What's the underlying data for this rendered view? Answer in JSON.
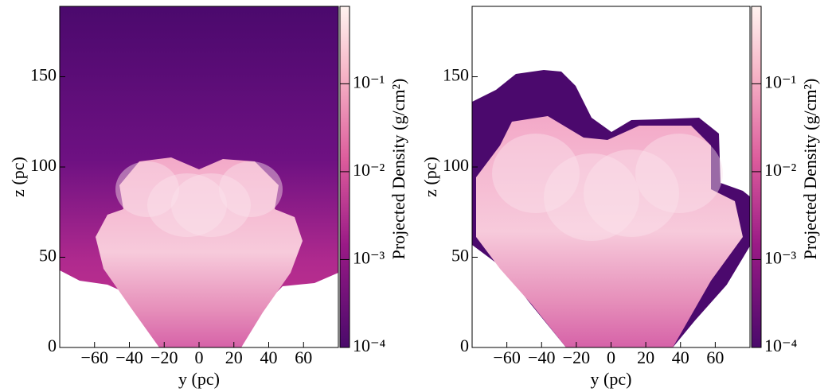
{
  "chart_data": [
    {
      "type": "heatmap",
      "xlabel": "y (pc)",
      "ylabel": "z (pc)",
      "colorbar_label": "Projected Density (g/cm²)",
      "xlim": [
        -80,
        80
      ],
      "xticks": [
        {
          "value": -60,
          "label": "−60"
        },
        {
          "value": -40,
          "label": "−40"
        },
        {
          "value": -20,
          "label": "−20"
        },
        0,
        20,
        40,
        60
      ],
      "ylim": [
        0,
        189
      ],
      "yticks": [
        0,
        50,
        100,
        150
      ],
      "clim": [
        0.0001,
        0.76
      ],
      "log_color": true,
      "cticks": [
        {
          "value": 0.0001,
          "label": "10⁻⁴"
        },
        {
          "value": 0.001,
          "label": "10⁻³"
        },
        {
          "value": 0.01,
          "label": "10⁻²"
        },
        {
          "value": 0.1,
          "label": "10⁻¹"
        }
      ]
    },
    {
      "type": "heatmap",
      "xlabel": "y (pc)",
      "ylabel": "z (pc)",
      "colorbar_label": "Projected Density (g/cm²)",
      "xlim": [
        -80,
        80
      ],
      "xticks": [
        {
          "value": -60,
          "label": "−60"
        },
        {
          "value": -40,
          "label": "−40"
        },
        {
          "value": -20,
          "label": "−20"
        },
        0,
        20,
        40,
        60
      ],
      "ylim": [
        0,
        189
      ],
      "yticks": [
        0,
        50,
        100,
        150
      ],
      "clim": [
        0.0001,
        0.76
      ],
      "log_color": true,
      "cticks": [
        {
          "value": 0.0001,
          "label": "10⁻⁴"
        },
        {
          "value": 0.001,
          "label": "10⁻³"
        },
        {
          "value": 0.01,
          "label": "10⁻²"
        },
        {
          "value": 0.1,
          "label": "10⁻¹"
        }
      ]
    }
  ]
}
